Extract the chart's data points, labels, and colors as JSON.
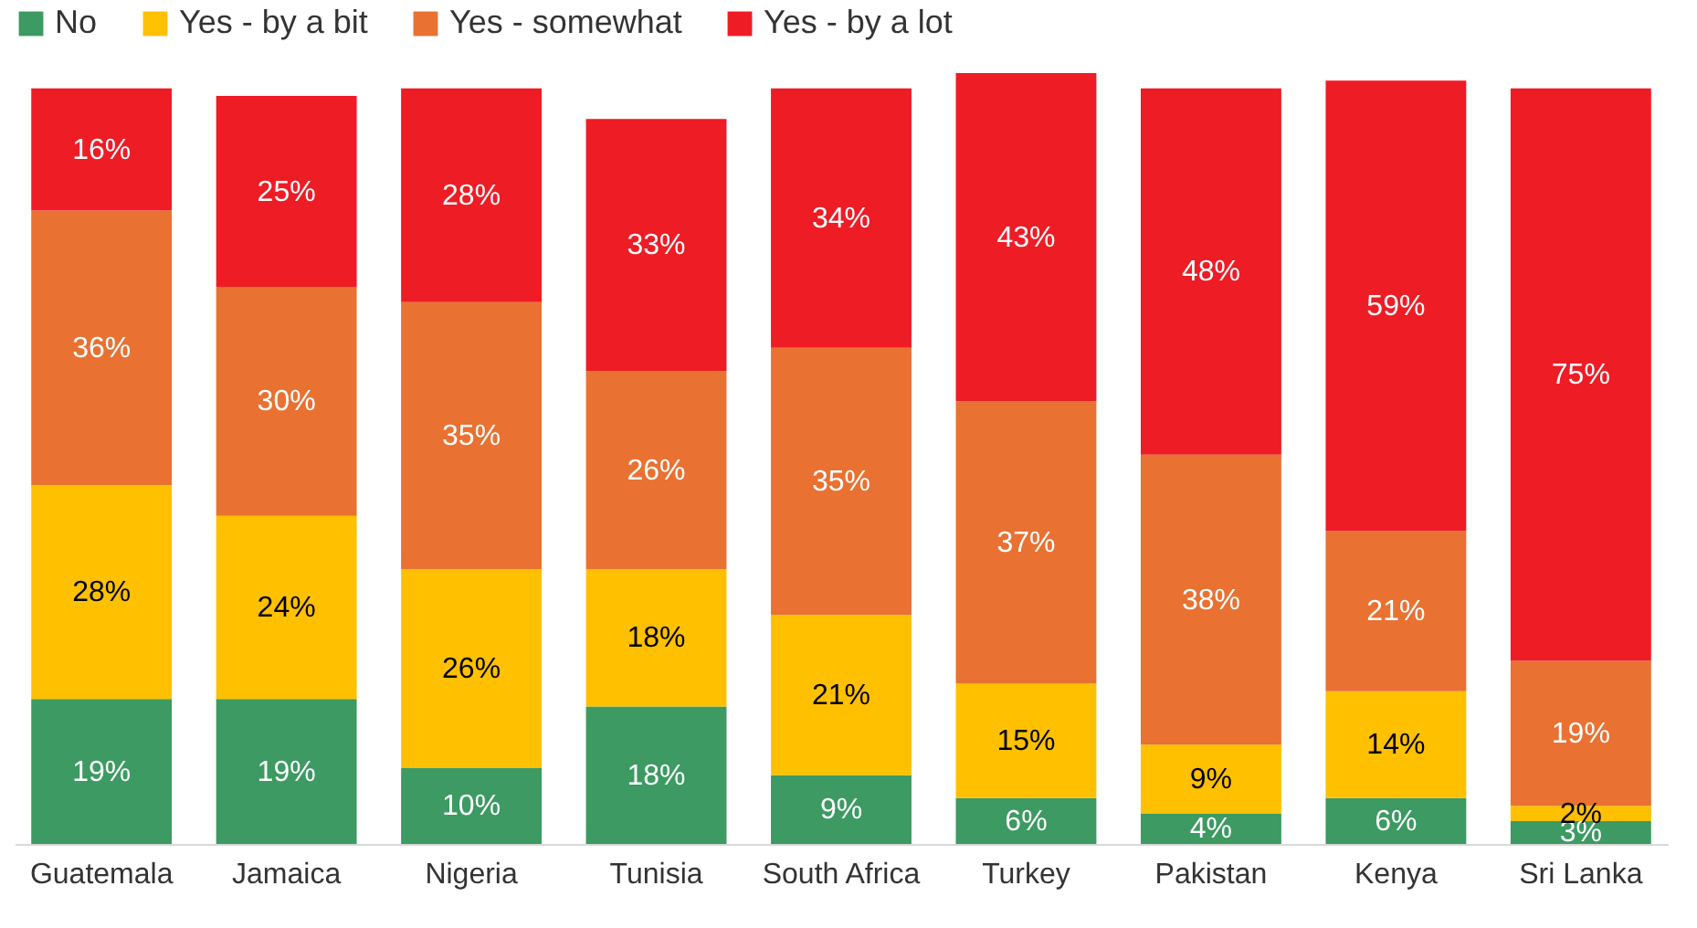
{
  "chart_data": {
    "type": "bar",
    "stacked": true,
    "legend": "top",
    "grid": false,
    "categories": [
      "Guatemala",
      "Jamaica",
      "Nigeria",
      "Tunisia",
      "South Africa",
      "Turkey",
      "Pakistan",
      "Kenya",
      "Sri Lanka"
    ],
    "series": [
      {
        "name": "No",
        "color": "#3c9a62",
        "values": [
          19,
          19,
          10,
          18,
          9,
          6,
          4,
          6,
          3
        ],
        "value_labels": [
          "19%",
          "19%",
          "10%",
          "18%",
          "9%",
          "6%",
          "4%",
          "6%",
          "3%"
        ]
      },
      {
        "name": "Yes - by a bit",
        "color": "#ffc000",
        "values": [
          28,
          24,
          26,
          18,
          21,
          15,
          9,
          14,
          2
        ],
        "value_labels": [
          "28%",
          "24%",
          "26%",
          "18%",
          "21%",
          "15%",
          "9%",
          "14%",
          "2%"
        ]
      },
      {
        "name": "Yes - somewhat",
        "color": "#e97132",
        "values": [
          36,
          30,
          35,
          26,
          35,
          37,
          38,
          21,
          19
        ],
        "value_labels": [
          "36%",
          "30%",
          "35%",
          "26%",
          "35%",
          "37%",
          "38%",
          "21%",
          "19%"
        ]
      },
      {
        "name": "Yes - by a lot",
        "color": "#ee1c25",
        "values": [
          16,
          25,
          28,
          33,
          34,
          43,
          48,
          59,
          75
        ],
        "value_labels": [
          "16%",
          "25%",
          "28%",
          "33%",
          "34%",
          "43%",
          "48%",
          "59%",
          "75%"
        ]
      }
    ]
  }
}
